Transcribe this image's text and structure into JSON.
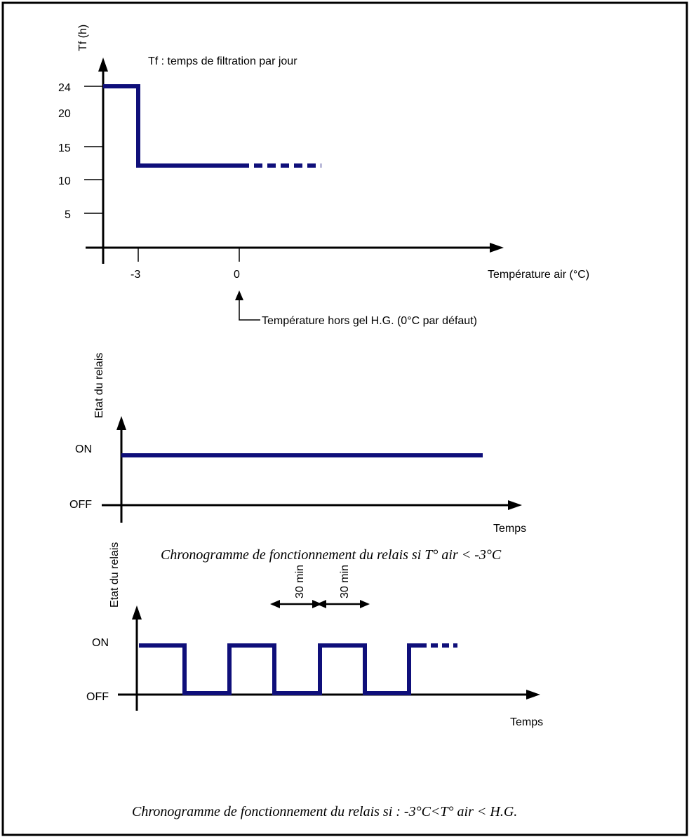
{
  "colors": {
    "signal": "#0f0f7a",
    "axis": "#000000",
    "frame": "#000000"
  },
  "chart1": {
    "y_axis_label": "Tf (h)",
    "legend_note": "Tf : temps de filtration par jour",
    "y_ticks": [
      "24",
      "20",
      "15",
      "10",
      "5"
    ],
    "x_ticks": [
      "-3",
      "0"
    ],
    "x_axis_label": "Température air (°C)",
    "annotation": "Température hors gel  H.G. (0°C par défaut)"
  },
  "chart2": {
    "y_axis_label": "Etat du relais",
    "state_on": "ON",
    "state_off": "OFF",
    "x_axis_label": "Temps",
    "caption": "Chronogramme de fonctionnement du relais si T° air < -3°C"
  },
  "chart3": {
    "y_axis_label": "Etat du relais",
    "state_on": "ON",
    "state_off": "OFF",
    "interval_1": "30 min",
    "interval_2": "30 min",
    "x_axis_label": "Temps",
    "caption": "Chronogramme de fonctionnement du relais si : -3°C<T° air < H.G."
  }
}
